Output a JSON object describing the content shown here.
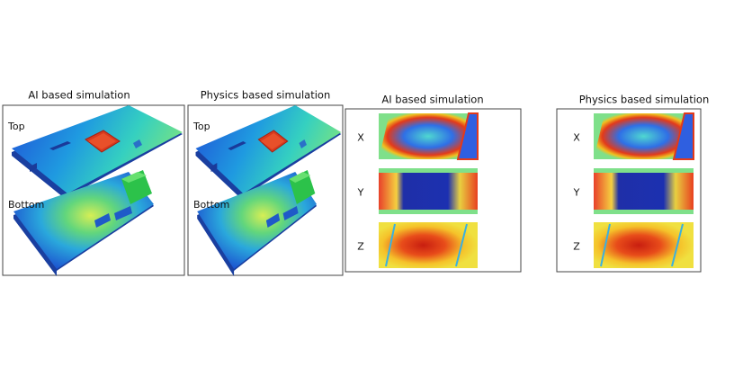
{
  "panels": [
    {
      "title": "AI based simulation",
      "labels": [
        "Top",
        "Bottom"
      ]
    },
    {
      "title": "Physics based simulation",
      "labels": [
        "Top",
        "Bottom"
      ]
    },
    {
      "title": "AI based simulation",
      "labels": [
        "X",
        "Y",
        "Z"
      ]
    },
    {
      "title": "Physics based simulation",
      "labels": [
        "X",
        "Y",
        "Z"
      ]
    }
  ]
}
